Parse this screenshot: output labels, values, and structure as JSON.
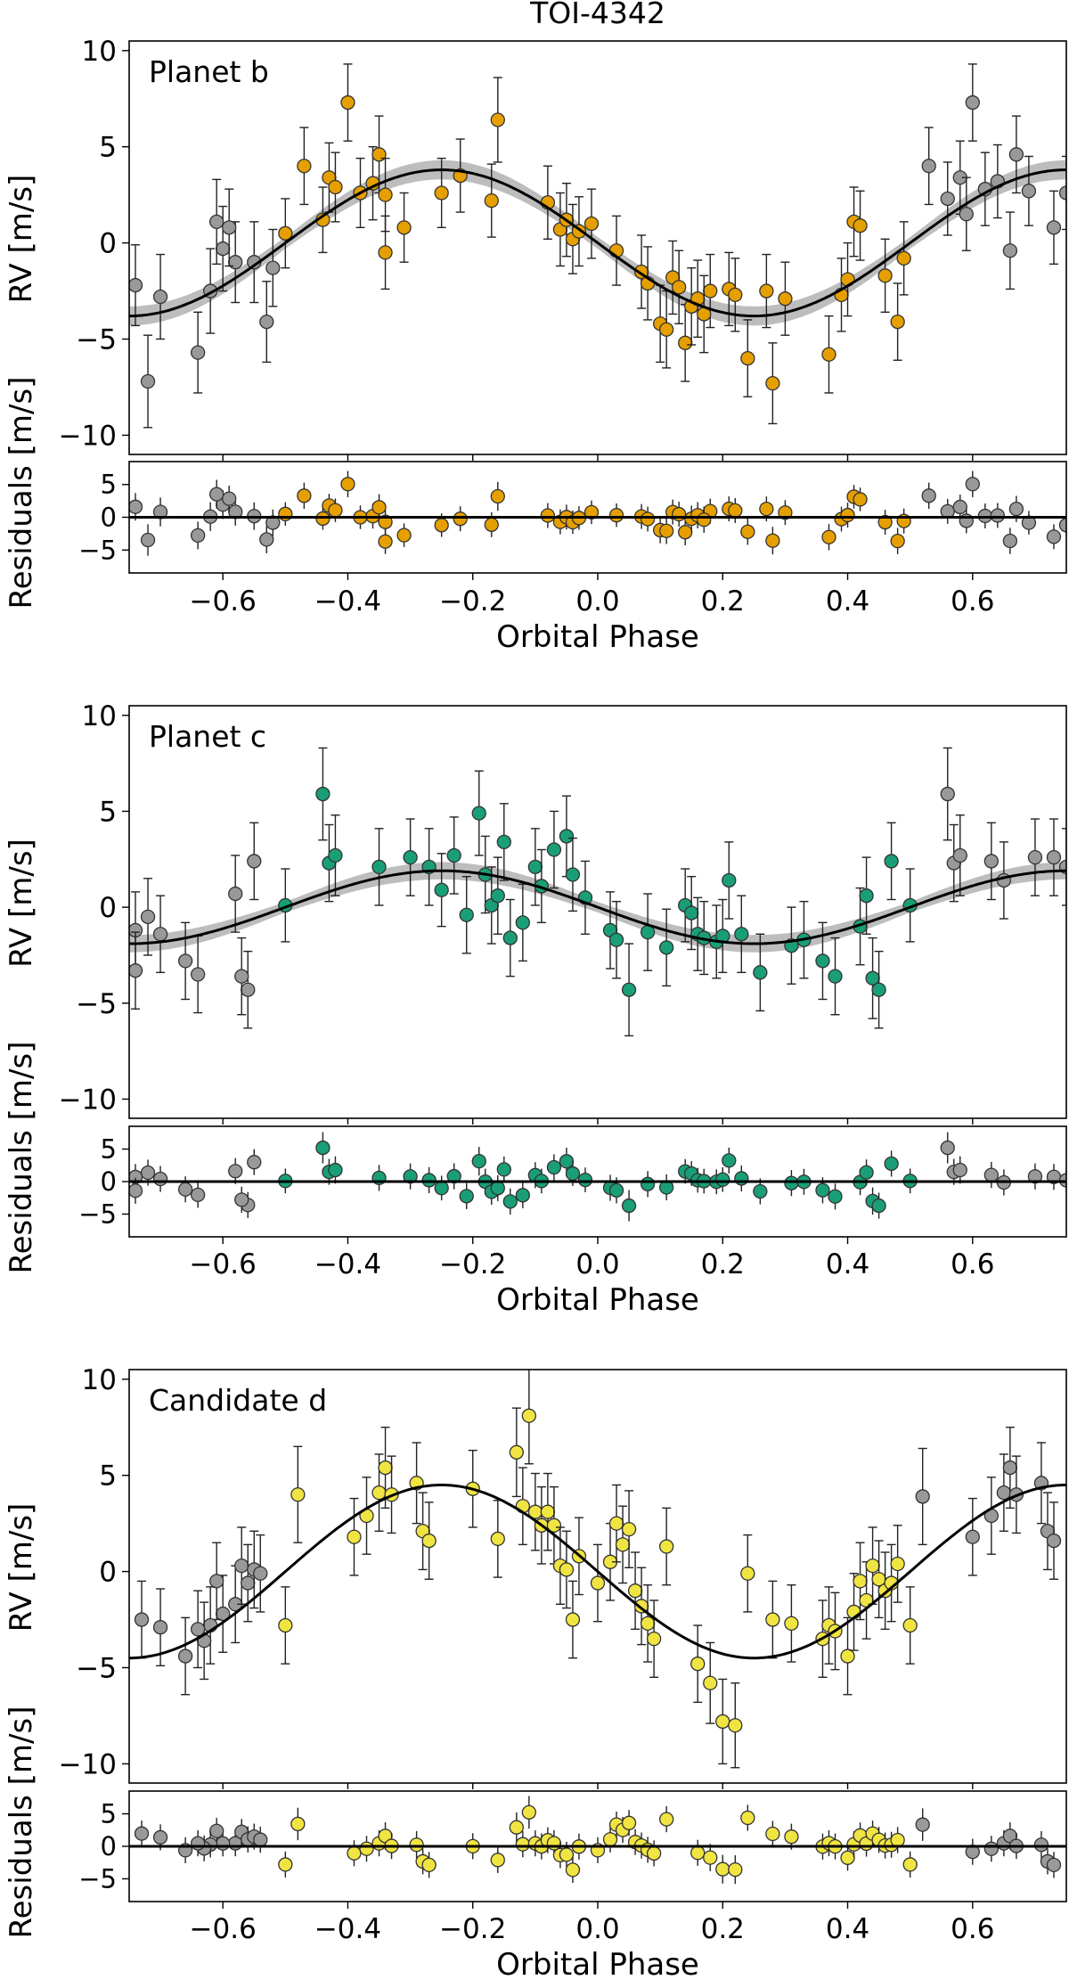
{
  "figure": {
    "title": "TOI-4342"
  },
  "chart_data": [
    {
      "type": "scatter",
      "panel": "Planet b",
      "title": "Planet b",
      "xlabel": "Orbital Phase",
      "ylabel": "RV [m/s]",
      "resid_ylabel": "Residuals [m/s]",
      "xlim": [
        -0.75,
        0.75
      ],
      "ylim": [
        -11,
        10.5
      ],
      "resid_ylim": [
        -8.5,
        8.5
      ],
      "xticks": [
        -0.6,
        -0.4,
        -0.2,
        0.0,
        0.2,
        0.4,
        0.6
      ],
      "xtick_labels": [
        "−0.6",
        "−0.4",
        "−0.2",
        "0.0",
        "0.2",
        "0.4",
        "0.6"
      ],
      "yticks": [
        -10,
        -5,
        0,
        5,
        10
      ],
      "ytick_labels": [
        "−10",
        "−5",
        "0",
        "5",
        "10"
      ],
      "resid_yticks": [
        -5,
        0,
        5
      ],
      "resid_ytick_labels": [
        "−5",
        "0",
        "5"
      ],
      "color": "#e69f00",
      "repeat_color": "#999999",
      "model": {
        "amplitude": 3.8,
        "band": 0.5
      },
      "points": [
        [
          -0.43,
          3.4,
          1.8
        ],
        [
          -0.42,
          2.9,
          1.8
        ],
        [
          -0.4,
          7.3,
          2.0
        ],
        [
          -0.38,
          2.6,
          1.8
        ],
        [
          -0.36,
          3.1,
          1.9
        ],
        [
          -0.35,
          4.6,
          2.0
        ],
        [
          -0.34,
          2.5,
          1.9
        ],
        [
          -0.34,
          -0.5,
          1.9
        ],
        [
          -0.31,
          0.8,
          1.8
        ],
        [
          -0.47,
          4.0,
          2.0
        ],
        [
          -0.44,
          1.2,
          1.7
        ],
        [
          -0.5,
          0.5,
          1.8
        ],
        [
          -0.25,
          2.6,
          1.8
        ],
        [
          -0.22,
          3.5,
          1.9
        ],
        [
          -0.16,
          6.4,
          2.2
        ],
        [
          -0.17,
          2.2,
          1.9
        ],
        [
          -0.08,
          2.1,
          1.9
        ],
        [
          -0.06,
          0.7,
          1.9
        ],
        [
          -0.05,
          1.2,
          1.9
        ],
        [
          -0.04,
          0.2,
          1.8
        ],
        [
          -0.03,
          0.6,
          1.8
        ],
        [
          -0.01,
          1.0,
          1.8
        ],
        [
          0.03,
          -0.4,
          1.8
        ],
        [
          0.07,
          -1.5,
          1.9
        ],
        [
          0.1,
          -4.2,
          2.0
        ],
        [
          0.12,
          -1.8,
          1.9
        ],
        [
          0.13,
          -2.3,
          1.9
        ],
        [
          0.14,
          -5.2,
          2.0
        ],
        [
          0.15,
          -3.3,
          2.0
        ],
        [
          0.16,
          -2.9,
          2.0
        ],
        [
          0.18,
          -2.5,
          1.9
        ],
        [
          0.21,
          -2.4,
          1.9
        ],
        [
          0.24,
          -6.0,
          2.0
        ],
        [
          0.27,
          -2.5,
          1.9
        ],
        [
          0.28,
          -7.3,
          2.1
        ],
        [
          0.3,
          -2.9,
          1.9
        ],
        [
          0.37,
          -5.8,
          2.0
        ],
        [
          0.39,
          -2.7,
          1.9
        ],
        [
          0.4,
          -1.9,
          1.9
        ],
        [
          0.41,
          1.1,
          1.8
        ],
        [
          0.42,
          0.9,
          1.8
        ],
        [
          0.46,
          -1.7,
          1.9
        ],
        [
          0.48,
          -4.1,
          2.0
        ],
        [
          0.49,
          -0.8,
          1.9
        ],
        [
          0.11,
          -4.5,
          2.0
        ],
        [
          0.17,
          -3.7,
          2.0
        ],
        [
          0.22,
          -2.7,
          1.9
        ],
        [
          0.08,
          -2.1,
          1.9
        ],
        [
          -0.6,
          -0.3,
          2.2
        ],
        [
          -0.62,
          -2.5,
          2.2
        ],
        [
          -0.58,
          -1.0,
          2.1
        ],
        [
          -0.61,
          1.1,
          2.2
        ],
        [
          -0.59,
          0.8,
          2.0
        ],
        [
          -0.55,
          -1.0,
          2.1
        ],
        [
          -0.53,
          -4.1,
          2.1
        ],
        [
          -0.52,
          -1.3,
          2.0
        ],
        [
          -0.64,
          -5.7,
          2.1
        ],
        [
          -0.7,
          -2.8,
          2.2
        ],
        [
          -0.72,
          -7.2,
          2.4
        ],
        [
          -0.74,
          -2.2,
          2.1
        ],
        [
          0.53,
          4.0,
          2.0
        ],
        [
          0.56,
          2.3,
          1.9
        ],
        [
          0.58,
          3.4,
          1.9
        ],
        [
          0.59,
          1.5,
          1.9
        ],
        [
          0.6,
          7.3,
          2.0
        ],
        [
          0.62,
          2.8,
          1.9
        ],
        [
          0.64,
          3.2,
          1.9
        ],
        [
          0.66,
          -0.4,
          2.0
        ],
        [
          0.67,
          4.6,
          2.0
        ],
        [
          0.69,
          2.7,
          1.8
        ],
        [
          0.73,
          0.8,
          1.9
        ],
        [
          0.75,
          2.6,
          1.9
        ]
      ]
    },
    {
      "type": "scatter",
      "panel": "Planet c",
      "title": "Planet c",
      "xlabel": "Orbital Phase",
      "ylabel": "RV [m/s]",
      "resid_ylabel": "Residuals [m/s]",
      "xlim": [
        -0.75,
        0.75
      ],
      "ylim": [
        -11,
        10.5
      ],
      "resid_ylim": [
        -8.5,
        8.5
      ],
      "xticks": [
        -0.6,
        -0.4,
        -0.2,
        0.0,
        0.2,
        0.4,
        0.6
      ],
      "xtick_labels": [
        "−0.6",
        "−0.4",
        "−0.2",
        "0.0",
        "0.2",
        "0.4",
        "0.6"
      ],
      "yticks": [
        -10,
        -5,
        0,
        5,
        10
      ],
      "ytick_labels": [
        "−10",
        "−5",
        "0",
        "5",
        "10"
      ],
      "resid_yticks": [
        -5,
        0,
        5
      ],
      "resid_ytick_labels": [
        "−5",
        "0",
        "5"
      ],
      "color": "#1a9e77",
      "repeat_color": "#999999",
      "model": {
        "amplitude": 1.9,
        "band": 0.45
      },
      "points": [
        [
          -0.44,
          5.9,
          2.4
        ],
        [
          -0.43,
          2.3,
          2.0
        ],
        [
          -0.42,
          2.7,
          2.1
        ],
        [
          -0.5,
          0.1,
          1.9
        ],
        [
          -0.35,
          2.1,
          2.0
        ],
        [
          -0.3,
          2.6,
          2.0
        ],
        [
          -0.27,
          2.1,
          2.0
        ],
        [
          -0.25,
          0.9,
          1.9
        ],
        [
          -0.23,
          2.7,
          2.0
        ],
        [
          -0.21,
          -0.4,
          2.0
        ],
        [
          -0.19,
          4.9,
          2.2
        ],
        [
          -0.18,
          1.7,
          2.0
        ],
        [
          -0.17,
          0.1,
          2.0
        ],
        [
          -0.16,
          0.6,
          2.0
        ],
        [
          -0.15,
          3.4,
          2.0
        ],
        [
          -0.14,
          -1.6,
          2.0
        ],
        [
          -0.12,
          -0.8,
          2.0
        ],
        [
          -0.1,
          2.1,
          2.0
        ],
        [
          -0.09,
          1.1,
          1.9
        ],
        [
          -0.07,
          3.0,
          2.0
        ],
        [
          -0.05,
          3.7,
          2.1
        ],
        [
          -0.04,
          1.7,
          1.9
        ],
        [
          -0.02,
          0.5,
          1.9
        ],
        [
          0.02,
          -1.2,
          2.0
        ],
        [
          0.05,
          -4.3,
          2.4
        ],
        [
          0.03,
          -1.7,
          2.0
        ],
        [
          0.08,
          -1.3,
          2.0
        ],
        [
          0.11,
          -2.1,
          2.0
        ],
        [
          0.14,
          0.1,
          1.9
        ],
        [
          0.15,
          -0.3,
          1.9
        ],
        [
          0.16,
          -1.4,
          1.9
        ],
        [
          0.17,
          -1.6,
          1.9
        ],
        [
          0.19,
          -1.8,
          1.9
        ],
        [
          0.2,
          -1.5,
          1.9
        ],
        [
          0.21,
          1.4,
          2.0
        ],
        [
          0.23,
          -1.4,
          2.0
        ],
        [
          0.26,
          -3.4,
          2.0
        ],
        [
          0.31,
          -2.0,
          2.0
        ],
        [
          0.33,
          -1.7,
          2.0
        ],
        [
          0.36,
          -2.8,
          2.0
        ],
        [
          0.38,
          -3.6,
          2.0
        ],
        [
          0.42,
          -1.0,
          2.0
        ],
        [
          0.43,
          0.6,
          2.0
        ],
        [
          0.44,
          -3.7,
          2.1
        ],
        [
          0.45,
          -4.3,
          2.0
        ],
        [
          0.47,
          2.4,
          2.0
        ],
        [
          -0.56,
          -4.3,
          2.0
        ],
        [
          -0.57,
          -3.6,
          2.0
        ],
        [
          -0.58,
          0.7,
          2.0
        ],
        [
          -0.55,
          2.4,
          2.0
        ],
        [
          -0.64,
          -3.5,
          2.0
        ],
        [
          -0.66,
          -2.8,
          2.0
        ],
        [
          -0.7,
          -1.4,
          2.0
        ],
        [
          -0.72,
          -0.5,
          2.0
        ],
        [
          -0.74,
          -1.2,
          2.0
        ],
        [
          -0.74,
          -3.3,
          2.0
        ],
        [
          0.56,
          5.9,
          2.4
        ],
        [
          0.57,
          2.3,
          2.0
        ],
        [
          0.58,
          2.7,
          2.1
        ],
        [
          0.63,
          2.4,
          2.0
        ],
        [
          0.5,
          0.1,
          1.9
        ],
        [
          0.7,
          2.6,
          2.0
        ],
        [
          0.73,
          2.6,
          2.0
        ],
        [
          0.75,
          2.1,
          2.0
        ],
        [
          0.65,
          1.4,
          2.0
        ]
      ]
    },
    {
      "type": "scatter",
      "panel": "Candidate d",
      "title": "Candidate d",
      "xlabel": "Orbital Phase",
      "ylabel": "RV [m/s]",
      "resid_ylabel": "Residuals [m/s]",
      "xlim": [
        -0.75,
        0.75
      ],
      "ylim": [
        -11,
        10.5
      ],
      "resid_ylim": [
        -8.5,
        8.5
      ],
      "xticks": [
        -0.6,
        -0.4,
        -0.2,
        0.0,
        0.2,
        0.4,
        0.6
      ],
      "xtick_labels": [
        "−0.6",
        "−0.4",
        "−0.2",
        "0.0",
        "0.2",
        "0.4",
        "0.6"
      ],
      "yticks": [
        -10,
        -5,
        0,
        5,
        10
      ],
      "ytick_labels": [
        "−10",
        "−5",
        "0",
        "5",
        "10"
      ],
      "resid_yticks": [
        -5,
        0,
        5
      ],
      "resid_ytick_labels": [
        "−5",
        "0",
        "5"
      ],
      "color": "#f0e442",
      "repeat_color": "#999999",
      "model": {
        "amplitude": 4.5,
        "band": 0
      },
      "points": [
        [
          -0.48,
          4.0,
          2.5
        ],
        [
          -0.5,
          -2.8,
          2.0
        ],
        [
          -0.39,
          1.8,
          2.0
        ],
        [
          -0.37,
          2.9,
          2.0
        ],
        [
          -0.35,
          4.1,
          2.0
        ],
        [
          -0.34,
          5.4,
          2.1
        ],
        [
          -0.33,
          4.0,
          2.0
        ],
        [
          -0.29,
          4.6,
          2.1
        ],
        [
          -0.28,
          2.1,
          2.0
        ],
        [
          -0.27,
          1.6,
          2.0
        ],
        [
          -0.2,
          4.3,
          2.0
        ],
        [
          -0.16,
          1.7,
          2.0
        ],
        [
          -0.13,
          6.2,
          2.3
        ],
        [
          -0.12,
          3.4,
          2.0
        ],
        [
          -0.11,
          8.1,
          2.5
        ],
        [
          -0.1,
          3.1,
          2.0
        ],
        [
          -0.09,
          2.4,
          2.0
        ],
        [
          -0.08,
          3.1,
          2.0
        ],
        [
          -0.07,
          2.4,
          2.0
        ],
        [
          -0.06,
          0.3,
          2.0
        ],
        [
          -0.05,
          0.1,
          2.0
        ],
        [
          -0.04,
          -2.5,
          2.0
        ],
        [
          -0.03,
          0.8,
          2.0
        ],
        [
          0.0,
          -0.6,
          2.0
        ],
        [
          0.02,
          0.5,
          2.0
        ],
        [
          0.03,
          2.5,
          2.0
        ],
        [
          0.04,
          1.4,
          2.0
        ],
        [
          0.05,
          2.2,
          2.0
        ],
        [
          0.06,
          -1.0,
          2.0
        ],
        [
          0.07,
          -1.8,
          2.0
        ],
        [
          0.08,
          -2.7,
          2.0
        ],
        [
          0.09,
          -3.5,
          2.0
        ],
        [
          0.11,
          1.3,
          2.0
        ],
        [
          0.16,
          -4.8,
          2.0
        ],
        [
          0.18,
          -5.8,
          2.1
        ],
        [
          0.2,
          -7.8,
          2.2
        ],
        [
          0.22,
          -8.0,
          2.2
        ],
        [
          0.24,
          -0.1,
          2.0
        ],
        [
          0.28,
          -2.5,
          2.0
        ],
        [
          0.31,
          -2.7,
          2.0
        ],
        [
          0.36,
          -3.5,
          2.0
        ],
        [
          0.37,
          -2.8,
          2.0
        ],
        [
          0.38,
          -3.1,
          2.0
        ],
        [
          0.4,
          -4.4,
          2.0
        ],
        [
          0.41,
          -2.1,
          2.0
        ],
        [
          0.42,
          -0.5,
          2.0
        ],
        [
          0.43,
          -1.5,
          2.0
        ],
        [
          0.44,
          0.3,
          2.0
        ],
        [
          0.45,
          -0.4,
          2.0
        ],
        [
          0.46,
          -1.0,
          2.0
        ],
        [
          0.47,
          -0.6,
          2.0
        ],
        [
          0.48,
          0.4,
          2.0
        ],
        [
          -0.58,
          -1.7,
          2.0
        ],
        [
          -0.57,
          0.3,
          2.0
        ],
        [
          -0.56,
          -0.6,
          2.0
        ],
        [
          -0.55,
          0.1,
          2.0
        ],
        [
          -0.54,
          -0.1,
          2.0
        ],
        [
          -0.6,
          -2.2,
          2.0
        ],
        [
          -0.61,
          -0.5,
          2.0
        ],
        [
          -0.62,
          -2.8,
          2.0
        ],
        [
          -0.63,
          -3.6,
          2.0
        ],
        [
          -0.64,
          -3.0,
          2.0
        ],
        [
          -0.66,
          -4.4,
          2.0
        ],
        [
          -0.7,
          -2.9,
          2.0
        ],
        [
          -0.73,
          -2.5,
          2.0
        ],
        [
          0.52,
          3.9,
          2.5
        ],
        [
          0.5,
          -2.8,
          2.0
        ],
        [
          0.6,
          1.8,
          2.0
        ],
        [
          0.63,
          2.9,
          2.0
        ],
        [
          0.65,
          4.1,
          2.0
        ],
        [
          0.66,
          5.4,
          2.1
        ],
        [
          0.67,
          4.0,
          2.0
        ],
        [
          0.71,
          4.6,
          2.1
        ],
        [
          0.72,
          2.1,
          2.0
        ],
        [
          0.73,
          1.6,
          2.0
        ]
      ]
    }
  ]
}
